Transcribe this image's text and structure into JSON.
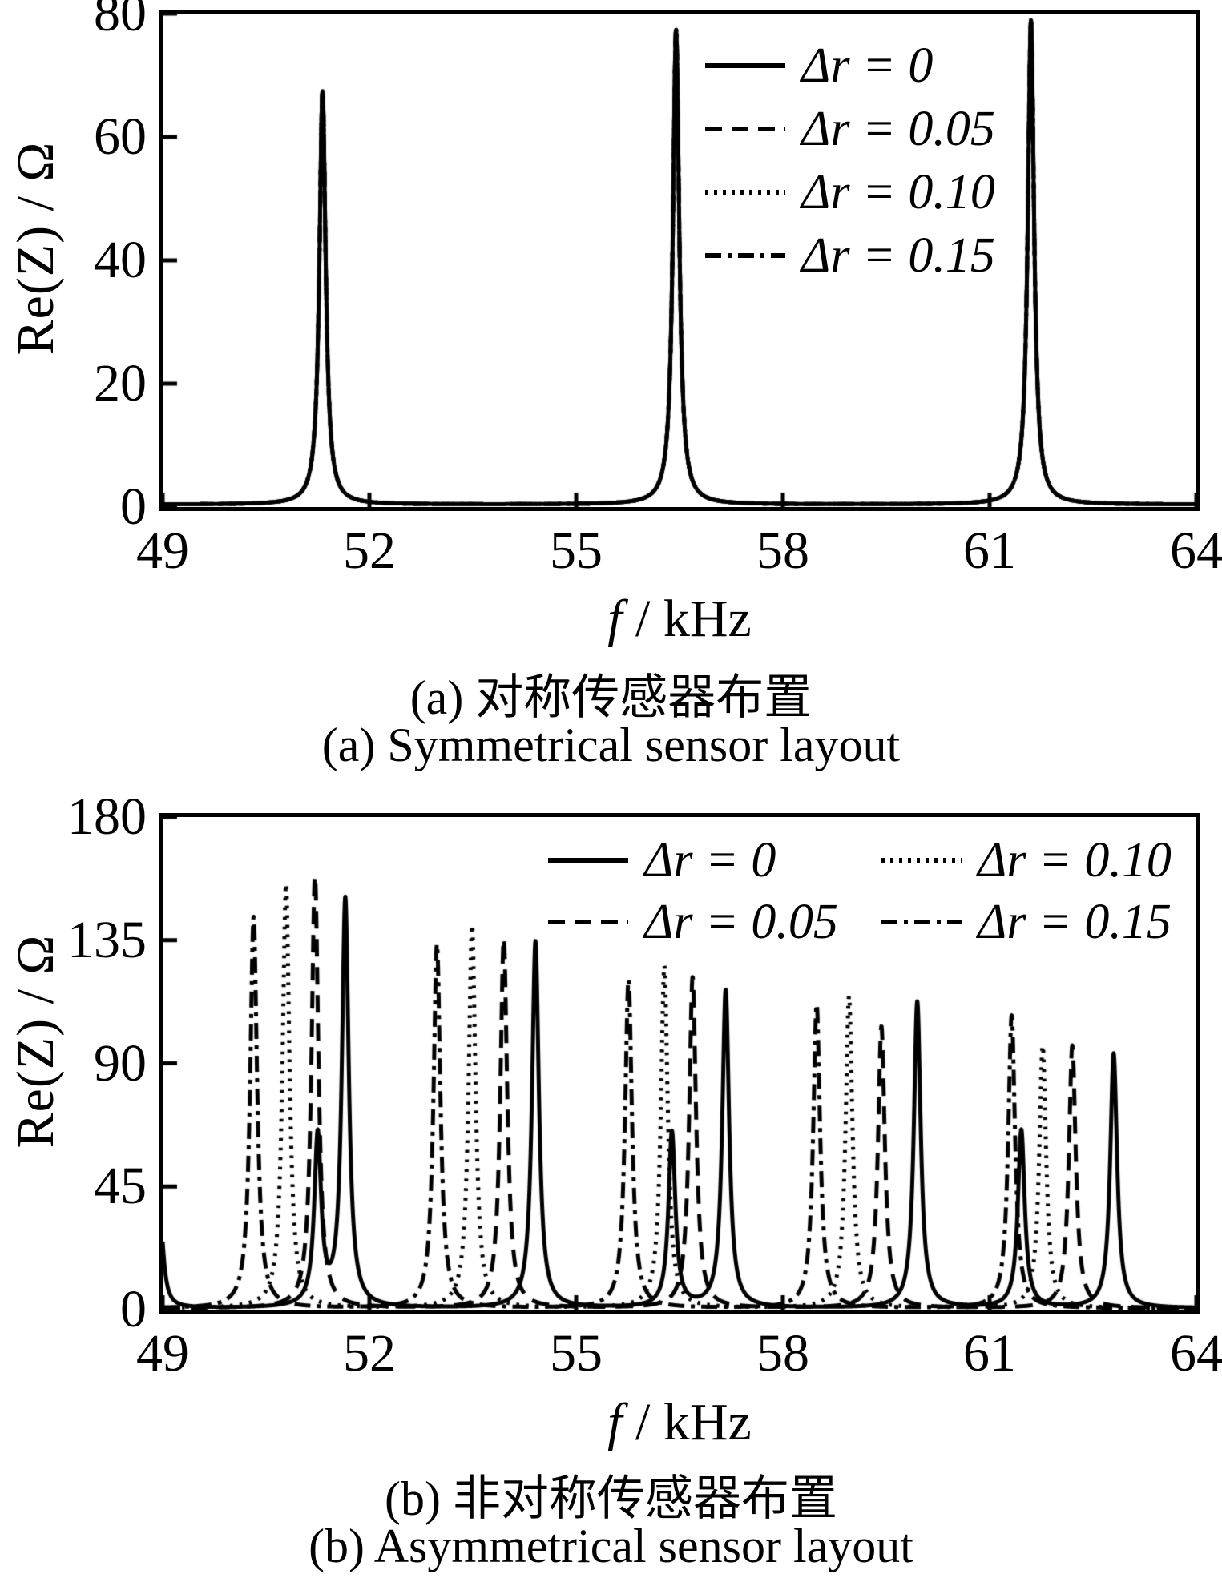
{
  "colors": {
    "ink": "#000000",
    "background": "#ffffff"
  },
  "figure": {
    "panel_a": {
      "y_axis_title": "Re(Z) / Ω",
      "x_axis_symbol": "f",
      "x_axis_unit": "/ kHz",
      "caption_zh": "(a)  对称传感器布置",
      "caption_en": "(a)  Symmetrical sensor layout"
    },
    "panel_b": {
      "y_axis_title": "Re(Z) / Ω",
      "x_axis_symbol": "f",
      "x_axis_unit": "/ kHz",
      "caption_zh": "(b)  非对称传感器布置",
      "caption_en": "(b)  Asymmetrical sensor layout"
    }
  },
  "chart_data": [
    {
      "type": "line",
      "title": "(a) Symmetrical sensor layout",
      "xlabel": "f / kHz",
      "ylabel": "Re(Z) / Ω",
      "xlim": [
        49,
        64
      ],
      "ylim": [
        0,
        80
      ],
      "xticks": [
        49,
        52,
        55,
        58,
        61,
        64
      ],
      "yticks": [
        0,
        20,
        40,
        60,
        80
      ],
      "grid": false,
      "legend_position": "top-right",
      "legend_columns": 1,
      "peak_halfwidth_khz": 0.055,
      "baseline_ohm": 0.4,
      "legend": [
        {
          "style": "solid",
          "label": "Δr = 0"
        },
        {
          "style": "dashed",
          "label": "Δr = 0.05"
        },
        {
          "style": "dotted",
          "label": "Δr = 0.10"
        },
        {
          "style": "dashdot",
          "label": "Δr = 0.15"
        }
      ],
      "series": [
        {
          "style": "dashdot",
          "label": "Δr = 0.15",
          "peaks": [
            {
              "f": 51.32,
              "h": 67
            },
            {
              "f": 56.45,
              "h": 77
            },
            {
              "f": 61.6,
              "h": 78.5
            }
          ]
        },
        {
          "style": "dotted",
          "label": "Δr = 0.10",
          "peaks": [
            {
              "f": 51.32,
              "h": 67
            },
            {
              "f": 56.45,
              "h": 77
            },
            {
              "f": 61.6,
              "h": 78.5
            }
          ]
        },
        {
          "style": "dashed",
          "label": "Δr = 0.05",
          "peaks": [
            {
              "f": 51.32,
              "h": 67
            },
            {
              "f": 56.45,
              "h": 77
            },
            {
              "f": 61.6,
              "h": 78.5
            }
          ]
        },
        {
          "style": "solid",
          "label": "Δr = 0",
          "peaks": [
            {
              "f": 51.32,
              "h": 67
            },
            {
              "f": 56.45,
              "h": 77
            },
            {
              "f": 61.6,
              "h": 78.5
            }
          ]
        }
      ]
    },
    {
      "type": "line",
      "title": "(b) Asymmetrical sensor layout",
      "xlabel": "f / kHz",
      "ylabel": "Re(Z) / Ω",
      "xlim": [
        49,
        64
      ],
      "ylim": [
        0,
        180
      ],
      "xticks": [
        49,
        52,
        55,
        58,
        61,
        64
      ],
      "yticks": [
        0,
        45,
        90,
        135,
        180
      ],
      "grid": false,
      "legend_position": "top-center",
      "legend_columns": 2,
      "peak_halfwidth_khz": 0.06,
      "baseline_ohm": 0.5,
      "legend": [
        {
          "style": "solid",
          "label": "Δr = 0"
        },
        {
          "style": "dotted",
          "label": "Δr = 0.10"
        },
        {
          "style": "dashed",
          "label": "Δr = 0.05"
        },
        {
          "style": "dashdot",
          "label": "Δr = 0.15"
        }
      ],
      "series": [
        {
          "style": "dashdot",
          "label": "Δr = 0.15",
          "peaks": [
            {
              "f": 50.32,
              "h": 143
            },
            {
              "f": 52.98,
              "h": 133
            },
            {
              "f": 55.76,
              "h": 120
            },
            {
              "f": 58.49,
              "h": 111
            },
            {
              "f": 61.32,
              "h": 107
            }
          ]
        },
        {
          "style": "dotted",
          "label": "Δr = 0.10",
          "peaks": [
            {
              "f": 50.79,
              "h": 155
            },
            {
              "f": 53.49,
              "h": 140
            },
            {
              "f": 56.28,
              "h": 125
            },
            {
              "f": 58.96,
              "h": 114
            },
            {
              "f": 61.77,
              "h": 96
            }
          ]
        },
        {
          "style": "dashed",
          "label": "Δr = 0.05",
          "peaks": [
            {
              "f": 51.21,
              "h": 158
            },
            {
              "f": 53.95,
              "h": 135
            },
            {
              "f": 56.69,
              "h": 121
            },
            {
              "f": 59.43,
              "h": 103
            },
            {
              "f": 62.2,
              "h": 96
            }
          ]
        },
        {
          "style": "solid",
          "label": "Δr = 0",
          "peaks": [
            {
              "f": 48.96,
              "h": 35
            },
            {
              "f": 51.25,
              "h": 62
            },
            {
              "f": 51.65,
              "h": 149
            },
            {
              "f": 54.41,
              "h": 134
            },
            {
              "f": 56.39,
              "h": 64
            },
            {
              "f": 57.17,
              "h": 116
            },
            {
              "f": 59.95,
              "h": 112
            },
            {
              "f": 61.46,
              "h": 65
            },
            {
              "f": 62.8,
              "h": 93
            }
          ]
        }
      ]
    }
  ]
}
